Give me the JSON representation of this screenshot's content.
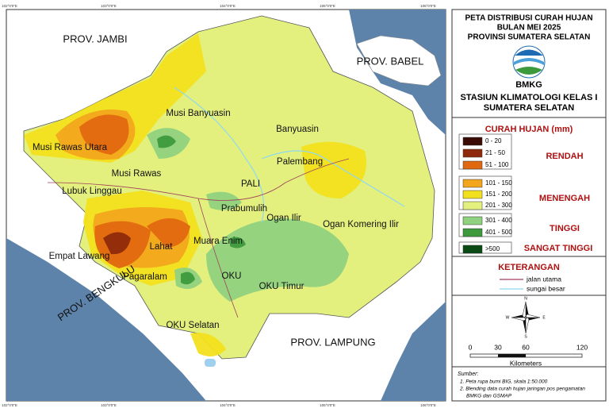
{
  "title": [
    "PETA DISTRIBUSI CURAH HUJAN",
    "BULAN MEI 2025",
    "PROVINSI SUMATERA SELATAN"
  ],
  "logo_text": "BMKG",
  "station": [
    "STASIUN KLIMATOLOGI  KELAS I",
    "SUMATERA SELATAN"
  ],
  "legend": {
    "title": "CURAH HUJAN (mm)",
    "groups": [
      {
        "name": "RENDAH",
        "classes": [
          {
            "label": "0 - 20",
            "color": "#3a0c05"
          },
          {
            "label": "21 - 50",
            "color": "#8e2a0b"
          },
          {
            "label": "51 - 100",
            "color": "#e0680f"
          }
        ]
      },
      {
        "name": "MENENGAH",
        "classes": [
          {
            "label": "101 - 150",
            "color": "#f2a61c"
          },
          {
            "label": "151 - 200",
            "color": "#f2e01e"
          },
          {
            "label": "201 - 300",
            "color": "#e3f07e"
          }
        ]
      },
      {
        "name": "TINGGI",
        "classes": [
          {
            "label": "301 - 400",
            "color": "#90d180"
          },
          {
            "label": "401 - 500",
            "color": "#3d9a3d"
          }
        ]
      },
      {
        "name": "SANGAT TINGGI",
        "classes": [
          {
            "label": ">500",
            "color": "#0b4a14"
          }
        ]
      }
    ]
  },
  "keterangan": {
    "title": "KETERANGAN",
    "items": [
      {
        "label": "jalan utama",
        "color": "#a0405a"
      },
      {
        "label": "sungai besar",
        "color": "#8fd8f0"
      }
    ]
  },
  "compass": [
    "N",
    "S",
    "E",
    "W"
  ],
  "scale": {
    "ticks": [
      "0",
      "30",
      "60",
      "120"
    ],
    "unit": "Kilometers"
  },
  "sources": {
    "title": "Sumber:",
    "items": [
      "1. Peta rupa bumi BIG, skala 1:50.000",
      "2. Blending data curah hujan jaringan pos pengamatan",
      "BMKG dan GSMAP"
    ]
  },
  "provinces": [
    "PROV. JAMBI",
    "PROV. BABEL",
    "PROV. BENGKULU",
    "PROV. LAMPUNG"
  ],
  "regencies": [
    "Musi Banyuasin",
    "Banyuasin",
    "Musi Rawas Utara",
    "Palembang",
    "Musi Rawas",
    "PALI",
    "Lubuk Linggau",
    "Prabumulih",
    "Ogan Ilir",
    "Ogan Komering Ilir",
    "Muara Enim",
    "Lahat",
    "Empat Lawang",
    "Pagaralam",
    "OKU",
    "OKU Timur",
    "OKU Selatan"
  ],
  "longitudes": [
    "102°0'0\"E",
    "103°0'0\"E",
    "104°0'0\"E",
    "105°0'0\"E",
    "106°0'0\"E"
  ]
}
